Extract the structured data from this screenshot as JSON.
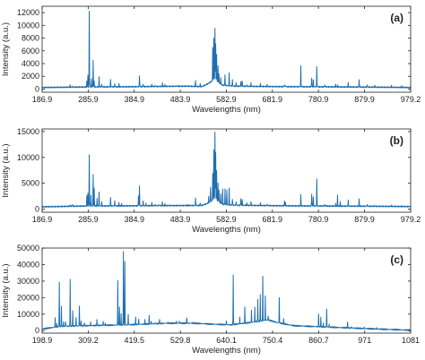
{
  "colors": {
    "line": "#1f6fae",
    "axes": "#222222",
    "background": "#ffffff"
  },
  "chart_data": [
    {
      "type": "line",
      "panel_label": "(a)",
      "xlabel": "Wavelengths (nm)",
      "ylabel": "Intensity (a.u.)",
      "xlim": [
        186.9,
        979.2
      ],
      "ylim": [
        -500,
        13000
      ],
      "xticks": [
        186.9,
        285.9,
        384.9,
        483.9,
        582.9,
        681.9,
        780.9,
        879.9,
        979.2
      ],
      "xtick_labels": [
        "186.9",
        "285.9",
        "384.9",
        "483.9",
        "582.9",
        "681.9",
        "780.9",
        "879.9",
        "979.2"
      ],
      "yticks": [
        0,
        2000,
        4000,
        6000,
        8000,
        10000,
        12000
      ],
      "ytick_labels": [
        "0",
        "2000",
        "4000",
        "6000",
        "8000",
        "10000",
        "12000"
      ],
      "grid": false,
      "baseline": [
        [
          186.9,
          250
        ],
        [
          280,
          320
        ],
        [
          400,
          380
        ],
        [
          500,
          450
        ],
        [
          530,
          380
        ],
        [
          540,
          700
        ],
        [
          558,
          1500
        ],
        [
          575,
          600
        ],
        [
          600,
          450
        ],
        [
          700,
          380
        ],
        [
          800,
          350
        ],
        [
          900,
          300
        ],
        [
          979.2,
          250
        ]
      ],
      "peaks": [
        [
          247,
          600
        ],
        [
          251.6,
          500
        ],
        [
          283,
          1200
        ],
        [
          285.2,
          2100
        ],
        [
          288.2,
          12300
        ],
        [
          293,
          1600
        ],
        [
          296.6,
          4600
        ],
        [
          298.8,
          1300
        ],
        [
          309.3,
          1900
        ],
        [
          315,
          800
        ],
        [
          334,
          1400
        ],
        [
          343,
          900
        ],
        [
          352,
          800
        ],
        [
          396.1,
          2100
        ],
        [
          404,
          800
        ],
        [
          422.7,
          700
        ],
        [
          430,
          600
        ],
        [
          445.5,
          900
        ],
        [
          451,
          700
        ],
        [
          475,
          600
        ],
        [
          480,
          500
        ],
        [
          516.7,
          1300
        ],
        [
          526.8,
          800
        ],
        [
          553.6,
          6600
        ],
        [
          556,
          8100
        ],
        [
          558.5,
          9500
        ],
        [
          560,
          7200
        ],
        [
          562,
          5500
        ],
        [
          565,
          3600
        ],
        [
          567,
          2300
        ],
        [
          571,
          1700
        ],
        [
          580,
          2300
        ],
        [
          589.0,
          2500
        ],
        [
          596,
          1500
        ],
        [
          604,
          1000
        ],
        [
          614.2,
          1200
        ],
        [
          617,
          1300
        ],
        [
          627,
          700
        ],
        [
          636,
          900
        ],
        [
          656.3,
          800
        ],
        [
          670.8,
          700
        ],
        [
          708,
          700
        ],
        [
          710,
          600
        ],
        [
          743,
          3600
        ],
        [
          766.5,
          1800
        ],
        [
          770,
          1400
        ],
        [
          777.4,
          3500
        ],
        [
          794.8,
          700
        ],
        [
          818,
          700
        ],
        [
          822,
          600
        ],
        [
          845,
          1000
        ],
        [
          868.4,
          1500
        ],
        [
          886,
          700
        ],
        [
          902,
          600
        ],
        [
          938,
          500
        ],
        [
          960,
          450
        ]
      ]
    },
    {
      "type": "line",
      "panel_label": "(b)",
      "xlabel": "Wavelengths (nm)",
      "ylabel": "Intensity (a.u.)",
      "xlim": [
        186.9,
        979.2
      ],
      "ylim": [
        -600,
        15500
      ],
      "xticks": [
        186.9,
        285.9,
        384.9,
        483.9,
        582.9,
        681.9,
        780.9,
        879.9,
        979.2
      ],
      "xtick_labels": [
        "186.9",
        "285.9",
        "384.9",
        "483.9",
        "582.9",
        "681.9",
        "780.9",
        "879.9",
        "979.2"
      ],
      "yticks": [
        0,
        5000,
        10000,
        15000
      ],
      "ytick_labels": [
        "0",
        "5000",
        "10000",
        "15000"
      ],
      "grid": false,
      "baseline": [
        [
          186.9,
          450
        ],
        [
          280,
          600
        ],
        [
          400,
          650
        ],
        [
          500,
          700
        ],
        [
          530,
          700
        ],
        [
          545,
          1200
        ],
        [
          558,
          2000
        ],
        [
          575,
          900
        ],
        [
          600,
          750
        ],
        [
          700,
          650
        ],
        [
          800,
          600
        ],
        [
          900,
          550
        ],
        [
          979.2,
          500
        ]
      ],
      "peaks": [
        [
          247,
          800
        ],
        [
          251.6,
          1000
        ],
        [
          283,
          2500
        ],
        [
          285.2,
          3000
        ],
        [
          288.2,
          10600
        ],
        [
          292,
          2800
        ],
        [
          296.6,
          6700
        ],
        [
          298.8,
          4000
        ],
        [
          305,
          2000
        ],
        [
          309.3,
          3200
        ],
        [
          315,
          1400
        ],
        [
          334,
          2200
        ],
        [
          343,
          1700
        ],
        [
          352,
          1200
        ],
        [
          358,
          1000
        ],
        [
          394,
          2500
        ],
        [
          396.1,
          4400
        ],
        [
          404,
          1600
        ],
        [
          410,
          1200
        ],
        [
          422.7,
          1200
        ],
        [
          430,
          1000
        ],
        [
          438,
          900
        ],
        [
          445.5,
          1400
        ],
        [
          451,
          1000
        ],
        [
          460,
          800
        ],
        [
          475,
          700
        ],
        [
          500,
          800
        ],
        [
          516.7,
          2200
        ],
        [
          526.8,
          1200
        ],
        [
          545,
          2500
        ],
        [
          549,
          4200
        ],
        [
          553.6,
          7000
        ],
        [
          556,
          11500
        ],
        [
          558.5,
          14800
        ],
        [
          560,
          11000
        ],
        [
          562,
          7500
        ],
        [
          565,
          5000
        ],
        [
          567,
          3600
        ],
        [
          571,
          2900
        ],
        [
          575,
          3800
        ],
        [
          580,
          4000
        ],
        [
          584,
          3800
        ],
        [
          589.0,
          4000
        ],
        [
          596,
          2000
        ],
        [
          604,
          1500
        ],
        [
          614.2,
          2100
        ],
        [
          617,
          1800
        ],
        [
          627,
          1200
        ],
        [
          636,
          1400
        ],
        [
          656.3,
          1200
        ],
        [
          670.8,
          1000
        ],
        [
          708,
          1600
        ],
        [
          710,
          1300
        ],
        [
          743,
          2700
        ],
        [
          766.5,
          3000
        ],
        [
          770,
          2400
        ],
        [
          777.4,
          5700
        ],
        [
          794.8,
          1000
        ],
        [
          818,
          1000
        ],
        [
          822,
          2600
        ],
        [
          828,
          1400
        ],
        [
          845,
          1800
        ],
        [
          868.4,
          1900
        ],
        [
          886,
          1000
        ],
        [
          902,
          800
        ],
        [
          938,
          700
        ],
        [
          960,
          600
        ]
      ]
    },
    {
      "type": "line",
      "panel_label": "(c)",
      "xlabel": "Wavelengths (nm)",
      "ylabel": "Intensity (a.u.)",
      "xlim": [
        198.9,
        1081
      ],
      "ylim": [
        -1500,
        50000
      ],
      "xticks": [
        198.9,
        309.2,
        419.5,
        529.8,
        640.1,
        750.4,
        860.7,
        971,
        1081
      ],
      "xtick_labels": [
        "198.9",
        "309.2",
        "419.5",
        "529.8",
        "640.1",
        "750.4",
        "860.7",
        "971",
        "1081"
      ],
      "yticks": [
        0,
        10000,
        20000,
        30000,
        40000,
        50000
      ],
      "ytick_labels": [
        "0",
        "10000",
        "20000",
        "30000",
        "40000",
        "50000"
      ],
      "grid": false,
      "baseline": [
        [
          198.9,
          1000
        ],
        [
          240,
          2500
        ],
        [
          300,
          3000
        ],
        [
          400,
          3500
        ],
        [
          500,
          4500
        ],
        [
          560,
          4500
        ],
        [
          600,
          4000
        ],
        [
          650,
          3500
        ],
        [
          700,
          5000
        ],
        [
          740,
          6500
        ],
        [
          760,
          5000
        ],
        [
          800,
          3000
        ],
        [
          900,
          2000
        ],
        [
          1000,
          1000
        ],
        [
          1081,
          300
        ]
      ],
      "peaks": [
        [
          230,
          7500
        ],
        [
          234,
          4000
        ],
        [
          240,
          29000
        ],
        [
          245,
          15000
        ],
        [
          250,
          5000
        ],
        [
          255,
          5500
        ],
        [
          266,
          31000
        ],
        [
          272,
          12000
        ],
        [
          280,
          8000
        ],
        [
          288,
          15000
        ],
        [
          292,
          6000
        ],
        [
          300,
          5000
        ],
        [
          315,
          5000
        ],
        [
          330,
          7000
        ],
        [
          345,
          5500
        ],
        [
          350,
          4500
        ],
        [
          380,
          30000
        ],
        [
          384,
          14000
        ],
        [
          388,
          10000
        ],
        [
          393.4,
          48000
        ],
        [
          396.8,
          42000
        ],
        [
          405,
          10000
        ],
        [
          422.7,
          8000
        ],
        [
          430,
          7000
        ],
        [
          445,
          6500
        ],
        [
          455,
          9000
        ],
        [
          460,
          6000
        ],
        [
          470,
          5000
        ],
        [
          480,
          7000
        ],
        [
          500,
          5000
        ],
        [
          520,
          5500
        ],
        [
          527,
          6000
        ],
        [
          545,
          8000
        ],
        [
          560,
          5000
        ],
        [
          590,
          4500
        ],
        [
          640,
          6000
        ],
        [
          656.3,
          34000
        ],
        [
          672,
          8000
        ],
        [
          684,
          14000
        ],
        [
          700,
          12000
        ],
        [
          708,
          14000
        ],
        [
          715,
          19000
        ],
        [
          721,
          22000
        ],
        [
          727,
          33000
        ],
        [
          733,
          21000
        ],
        [
          740,
          9000
        ],
        [
          766.5,
          20000
        ],
        [
          777,
          7000
        ],
        [
          800,
          3500
        ],
        [
          819,
          3000
        ],
        [
          860.7,
          10000
        ],
        [
          866,
          8000
        ],
        [
          872,
          4500
        ],
        [
          880,
          13000
        ],
        [
          886,
          4000
        ],
        [
          930,
          5500
        ],
        [
          940,
          2500
        ],
        [
          970,
          2000
        ],
        [
          1000,
          1500
        ]
      ]
    }
  ]
}
